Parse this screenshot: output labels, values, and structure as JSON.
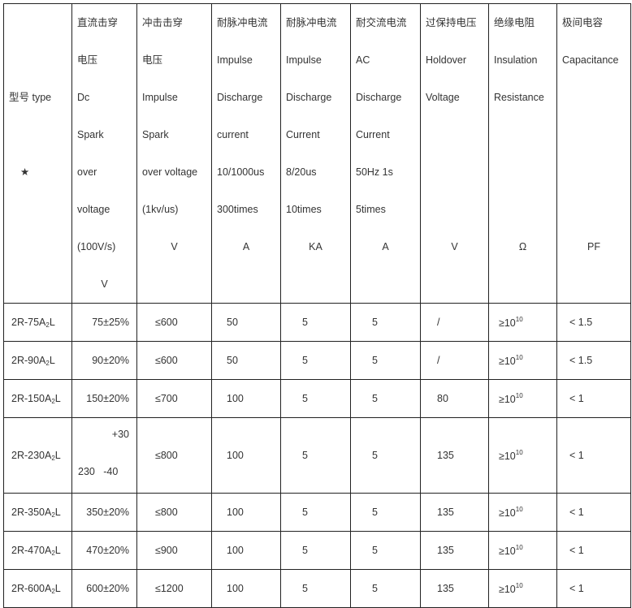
{
  "header": {
    "type_label": "型号 type",
    "star": "★",
    "columns": [
      {
        "lines": [
          "直流击穿",
          "电压",
          "Dc",
          "Spark",
          "over",
          "voltage",
          "(100V/s)"
        ],
        "unit": "V"
      },
      {
        "lines": [
          "冲击击穿",
          "电压",
          "Impulse",
          "Spark",
          "over voltage",
          "(1kv/us)"
        ],
        "unit": "V"
      },
      {
        "lines": [
          "耐脉冲电流",
          "Impulse",
          "Discharge",
          "current",
          "10/1000us",
          "300times"
        ],
        "unit": "A"
      },
      {
        "lines": [
          "耐脉冲电流",
          "Impulse",
          "Discharge",
          "Current",
          "8/20us",
          "10times"
        ],
        "unit": "KA"
      },
      {
        "lines": [
          "耐交流电流",
          "AC",
          "Discharge",
          "Current",
          "50Hz 1s",
          "5times"
        ],
        "unit": "A"
      },
      {
        "lines": [
          "过保持电压",
          "Holdover",
          "Voltage"
        ],
        "unit": "V"
      },
      {
        "lines": [
          "绝缘电阻",
          "Insulation",
          "Resistance"
        ],
        "unit": "Ω"
      },
      {
        "lines": [
          "极间电容",
          "Capacitance"
        ],
        "unit": "PF"
      }
    ]
  },
  "rows": [
    {
      "model": "2R-75A",
      "sub": "2",
      "suffix": "L",
      "dc": "75±25%",
      "imp": "≤600",
      "i1": "50",
      "i2": "5",
      "ac": "5",
      "hold": "/",
      "ins": "≥10",
      "exp": "10",
      "cap": "< 1.5"
    },
    {
      "model": "2R-90A",
      "sub": "2",
      "suffix": "L",
      "dc": "90±20%",
      "imp": "≤600",
      "i1": "50",
      "i2": "5",
      "ac": "5",
      "hold": "/",
      "ins": "≥10",
      "exp": "10",
      "cap": "< 1.5"
    },
    {
      "model": "2R-150A",
      "sub": "2",
      "suffix": "L",
      "dc": "150±20%",
      "imp": "≤700",
      "i1": "100",
      "i2": "5",
      "ac": "5",
      "hold": "80",
      "ins": "≥10",
      "exp": "10",
      "cap": "< 1"
    },
    {
      "model": "2R-230A",
      "sub": "2",
      "suffix": "L",
      "dc_plus": "+30",
      "dc_base": "230   -40",
      "imp": "≤800",
      "i1": "100",
      "i2": "5",
      "ac": "5",
      "hold": "135",
      "ins": "≥10",
      "exp": "10",
      "cap": "< 1"
    },
    {
      "model": "2R-350A",
      "sub": "2",
      "suffix": "L",
      "dc": "350±20%",
      "imp": "≤800",
      "i1": "100",
      "i2": "5",
      "ac": "5",
      "hold": "135",
      "ins": "≥10",
      "exp": "10",
      "cap": "< 1"
    },
    {
      "model": "2R-470A",
      "sub": "2",
      "suffix": "L",
      "dc": "470±20%",
      "imp": "≤900",
      "i1": "100",
      "i2": "5",
      "ac": "5",
      "hold": "135",
      "ins": "≥10",
      "exp": "10",
      "cap": "< 1"
    },
    {
      "model": "2R-600A",
      "sub": "2",
      "suffix": "L",
      "dc": "600±20%",
      "imp": "≤1200",
      "i1": "100",
      "i2": "5",
      "ac": "5",
      "hold": "135",
      "ins": "≥10",
      "exp": "10",
      "cap": "< 1"
    }
  ]
}
